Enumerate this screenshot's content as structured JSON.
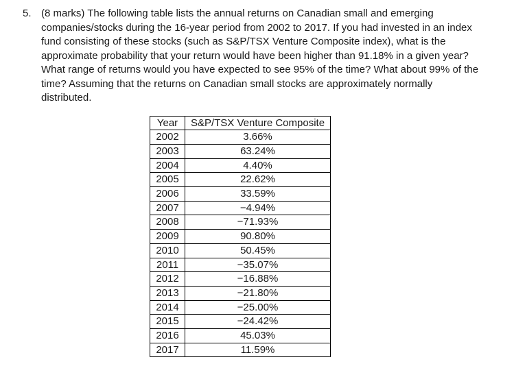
{
  "page": {
    "background_color": "#ffffff",
    "text_color": "#1a1a1a",
    "table_border_color": "#000000"
  },
  "question": {
    "number": "5.",
    "lines": [
      "(8 marks) The following table lists the annual returns on Canadian small and emerging",
      "companies/stocks during the 16-year period from 2002 to 2017. If you had invested in an index",
      "fund consisting of these stocks (such as S&P/TSX Venture Composite index), what is the",
      "approximate probability that your return would have been higher than 91.18% in a given year?",
      "What range of returns would you have expected to see 95% of the time? What about 99% of the",
      "time? Assuming that the returns on Canadian small stocks are approximately normally",
      "distributed."
    ]
  },
  "table": {
    "headers": [
      "Year",
      "S&P/TSX Venture Composite"
    ],
    "rows": [
      {
        "year": "2002",
        "return": "3.66%"
      },
      {
        "year": "2003",
        "return": "63.24%"
      },
      {
        "year": "2004",
        "return": "4.40%"
      },
      {
        "year": "2005",
        "return": "22.62%"
      },
      {
        "year": "2006",
        "return": "33.59%"
      },
      {
        "year": "2007",
        "return": "−4.94%"
      },
      {
        "year": "2008",
        "return": "−71.93%"
      },
      {
        "year": "2009",
        "return": "90.80%"
      },
      {
        "year": "2010",
        "return": "50.45%"
      },
      {
        "year": "2011",
        "return": "−35.07%"
      },
      {
        "year": "2012",
        "return": "−16.88%"
      },
      {
        "year": "2013",
        "return": "−21.80%"
      },
      {
        "year": "2014",
        "return": "−25.00%"
      },
      {
        "year": "2015",
        "return": "−24.42%"
      },
      {
        "year": "2016",
        "return": "45.03%"
      },
      {
        "year": "2017",
        "return": "11.59%"
      }
    ]
  }
}
